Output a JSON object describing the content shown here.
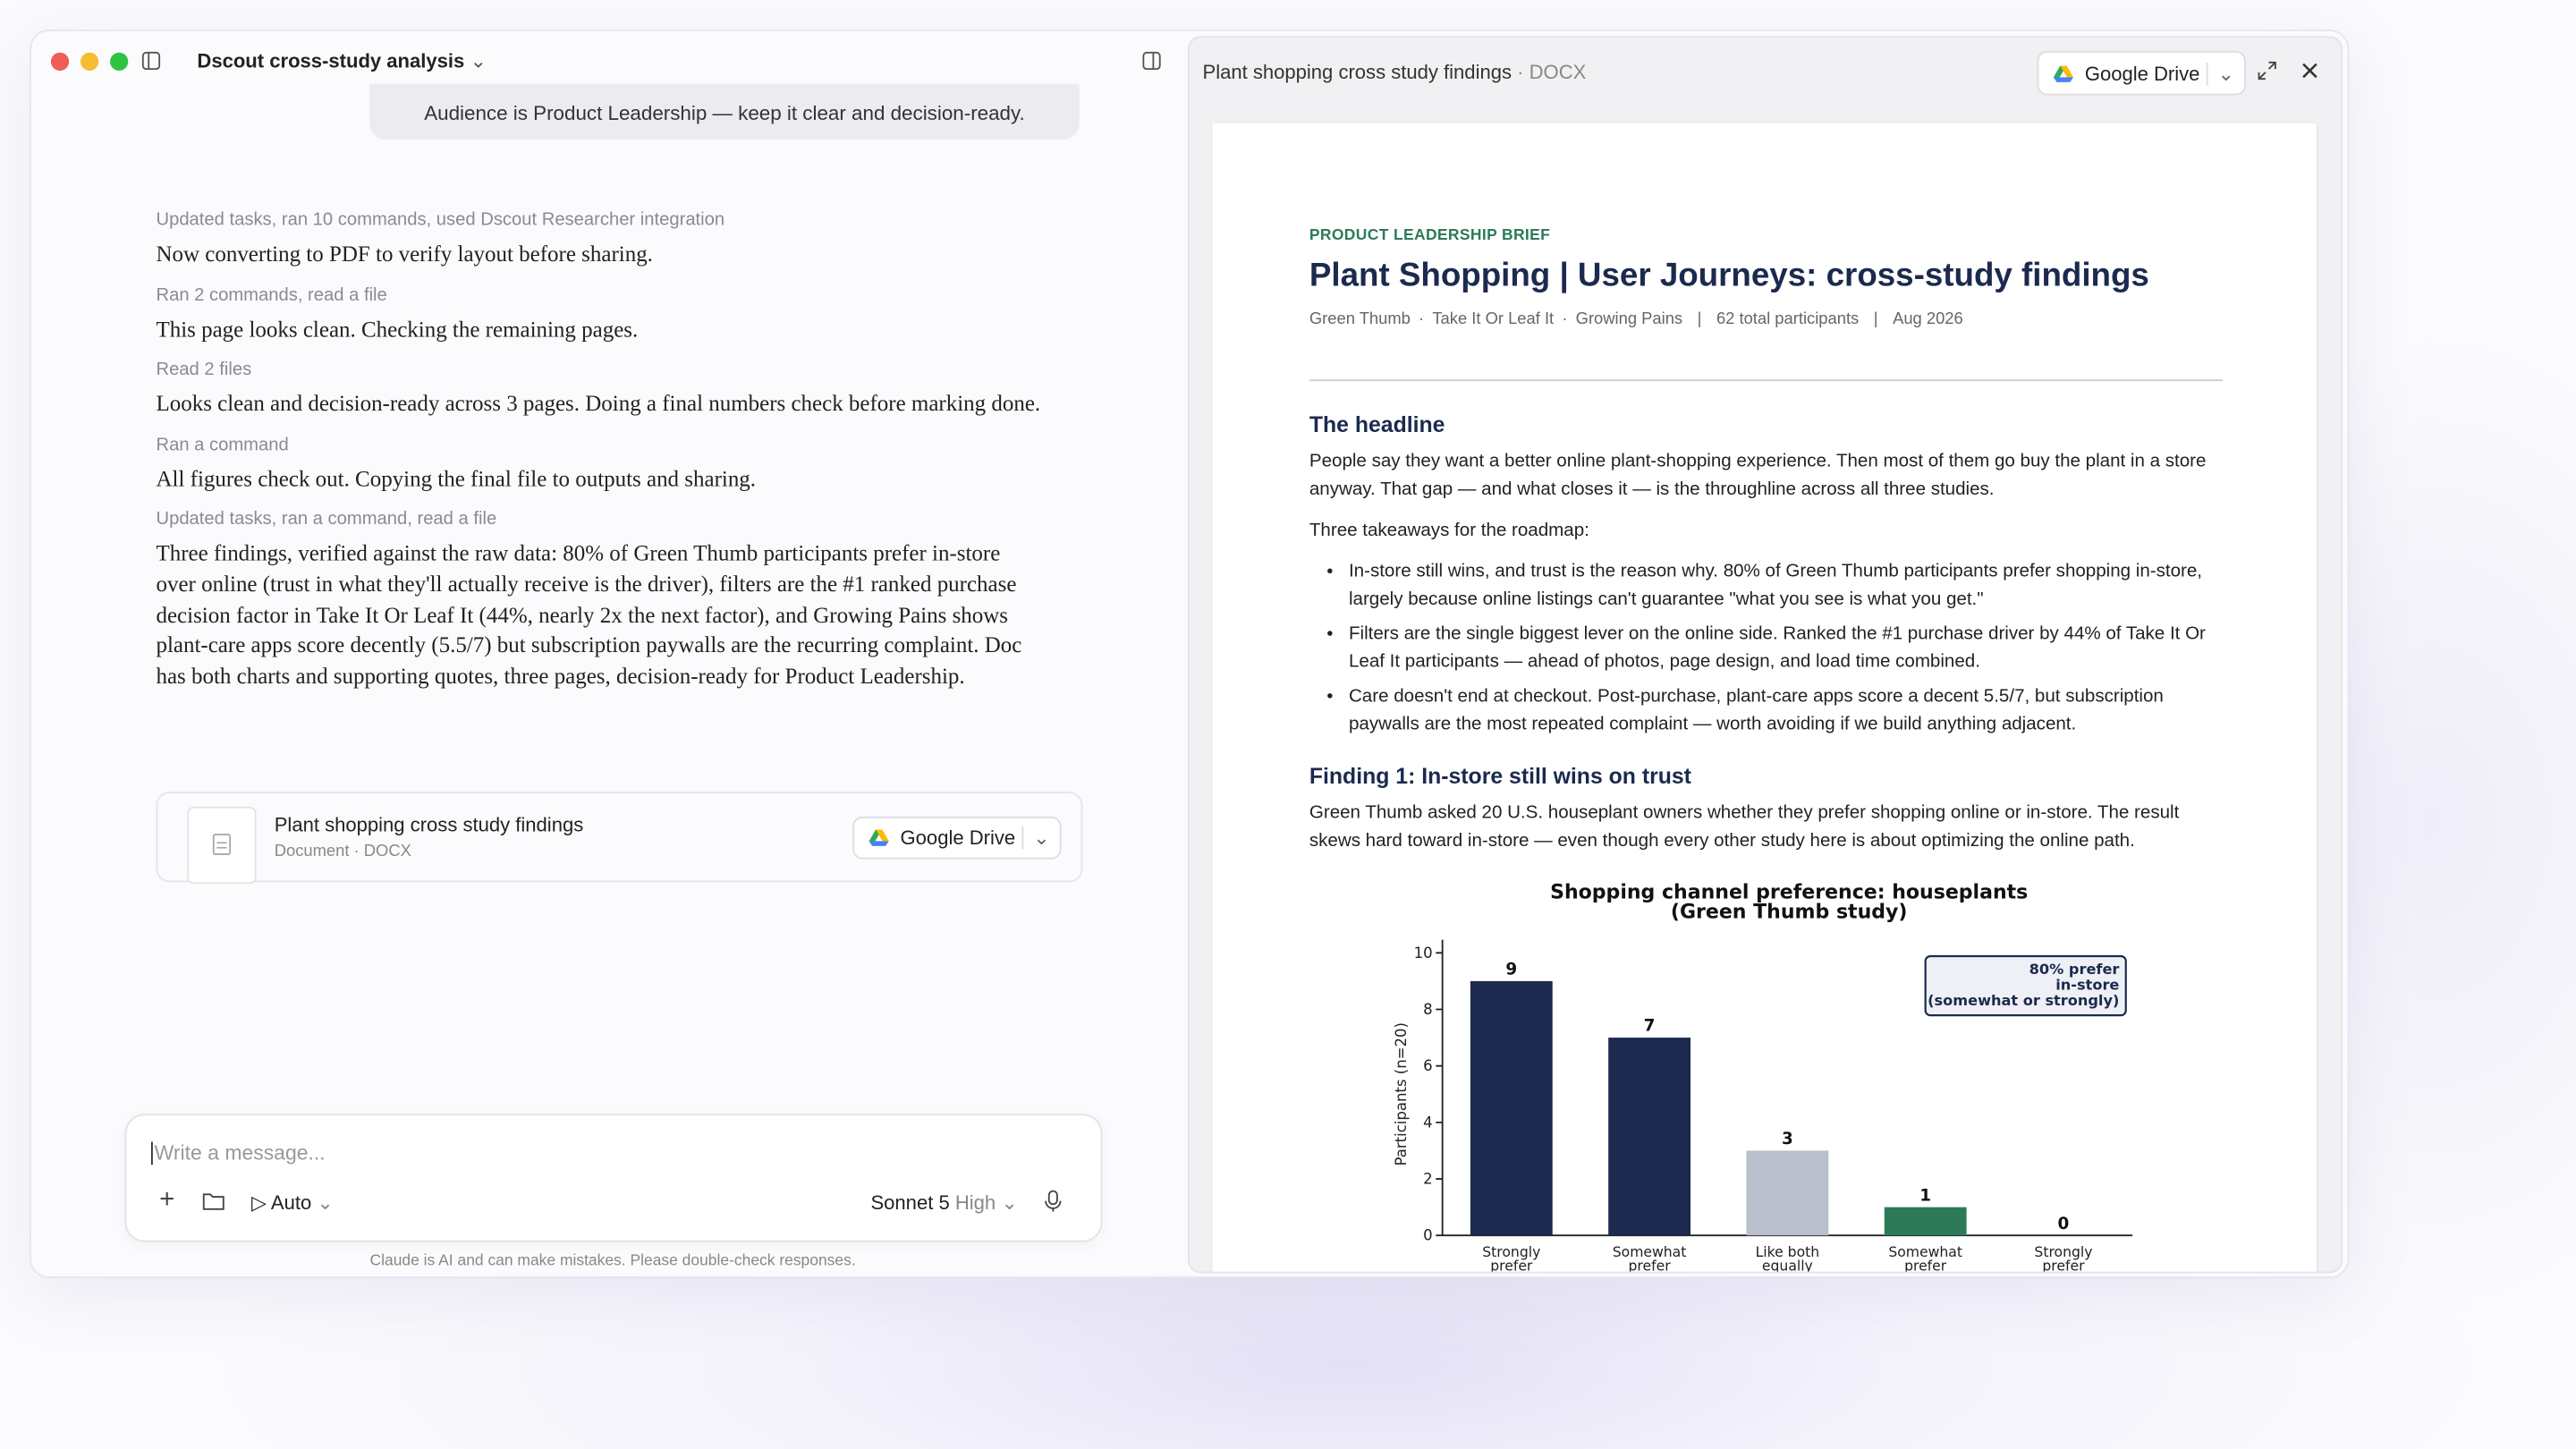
{
  "window": {
    "title": "Dscout cross-study analysis"
  },
  "chat": {
    "quoted_message": "Audience is Product Leadership — keep it clear and decision-ready.",
    "steps": [
      {
        "meta": "Updated tasks, ran 10 commands, used Dscout Researcher integration",
        "text": "Now converting to PDF to verify layout before sharing."
      },
      {
        "meta": "Ran 2 commands, read a file",
        "text": "This page looks clean. Checking the remaining pages."
      },
      {
        "meta": "Read 2 files",
        "text": "Looks clean and decision-ready across 3 pages. Doing a final numbers check before marking done."
      },
      {
        "meta": "Ran a command",
        "text": "All figures check out. Copying the final file to outputs and sharing."
      },
      {
        "meta": "Updated tasks, ran a command, read a file",
        "text": "Three findings, verified against the raw data: 80% of Green Thumb participants prefer in-store over online (trust in what they'll actually receive is the driver), filters are the #1 ranked purchase decision factor in Take It Or Leaf It (44%, nearly 2x the next factor), and Growing Pains shows plant-care apps score decently (5.5/7) but subscription paywalls are the recurring complaint. Doc has both charts and supporting quotes, three pages, decision-ready for Product Leadership."
      }
    ],
    "attachment": {
      "name": "Plant shopping cross study findings",
      "kind": "Document",
      "format": "DOCX",
      "share_button": "Google Drive"
    },
    "input_placeholder": "Write a message...",
    "mode": "Auto",
    "model": "Sonnet 5",
    "effort": "High",
    "disclaimer": "Claude is AI and can make mistakes. Please double-check responses."
  },
  "document": {
    "title": "Plant shopping cross study findings",
    "format": "DOCX",
    "share_button": "Google Drive",
    "eyebrow": "PRODUCT LEADERSHIP BRIEF",
    "heading": "Plant Shopping | User Journeys: cross-study findings",
    "studies": [
      "Green Thumb",
      "Take It Or Leaf It",
      "Growing Pains"
    ],
    "participants": "62 total participants",
    "date": "Aug 2026",
    "headline_title": "The headline",
    "headline_text": "People say they want a better online plant-shopping experience. Then most of them go buy the plant in a store anyway. That gap — and what closes it — is the throughline across all three studies.",
    "takeaways_intro": "Three takeaways for the roadmap:",
    "takeaways": [
      "In-store still wins, and trust is the reason why. 80% of Green Thumb participants prefer shopping in-store, largely because online listings can't guarantee \"what you see is what you get.\"",
      "Filters are the single biggest lever on the online side. Ranked the #1 purchase driver by 44% of Take It Or Leaf It participants — ahead of photos, page design, and load time combined.",
      "Care doesn't end at checkout. Post-purchase, plant-care apps score a decent 5.5/7, but subscription paywalls are the most repeated complaint — worth avoiding if we build anything adjacent."
    ],
    "finding1_title": "Finding 1: In-store still wins on trust",
    "finding1_text": "Green Thumb asked 20 U.S. houseplant owners whether they prefer shopping online or in-store. The result skews hard toward in-store — even though every other study here is about optimizing the online path.",
    "chart_data": {
      "type": "bar",
      "title": [
        "Shopping channel preference: houseplants",
        "(Green Thumb study)"
      ],
      "y_label": "Participants (n=20)",
      "categories": [
        [
          "Strongly",
          "prefer"
        ],
        [
          "Somewhat",
          "prefer"
        ],
        [
          "Like both",
          "equally"
        ],
        [
          "Somewhat",
          "prefer"
        ],
        [
          "Strongly",
          "prefer"
        ]
      ],
      "values": [
        9,
        7,
        3,
        1,
        0
      ],
      "colors": [
        "#1b2a4e",
        "#1b2a4e",
        "#b9bfcb",
        "#2d7a59",
        "#2d7a59"
      ],
      "ylim": [
        0,
        10
      ],
      "yticks": [
        0,
        2,
        4,
        6,
        8,
        10
      ],
      "annotation": [
        "80% prefer",
        "in-store",
        "(somewhat or strongly)"
      ]
    }
  }
}
